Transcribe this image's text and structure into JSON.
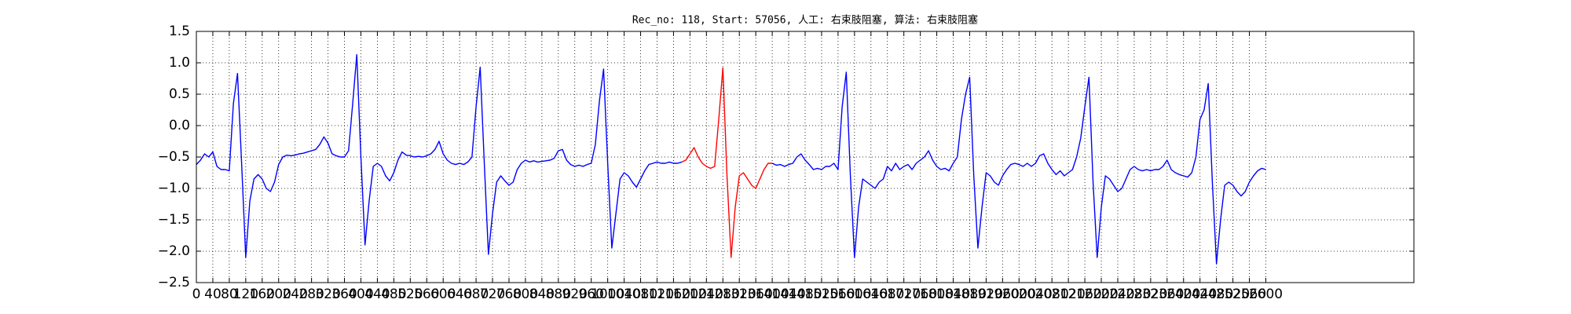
{
  "chart_data": {
    "type": "line",
    "title": "Rec_no: 118, Start: 57056, 人工: 右束肢阻塞, 算法: 右束肢阻塞",
    "xlim": [
      0,
      2960
    ],
    "ylim": [
      -2.5,
      1.5
    ],
    "xticks": [
      0,
      40,
      80,
      120,
      160,
      200,
      240,
      280,
      320,
      360,
      400,
      440,
      480,
      520,
      560,
      600,
      640,
      680,
      720,
      760,
      800,
      840,
      880,
      920,
      960,
      1000,
      1040,
      1080,
      1120,
      1160,
      1200,
      1240,
      1280,
      1320,
      1360,
      1400,
      1440,
      1480,
      1520,
      1560,
      1600,
      1640,
      1680,
      1720,
      1760,
      1800,
      1840,
      1880,
      1920,
      1960,
      2000,
      2040,
      2080,
      2120,
      2160,
      2200,
      2240,
      2280,
      2320,
      2360,
      2400,
      2440,
      2480,
      2520,
      2560,
      2600
    ],
    "yticks": [
      {
        "value": -2.5,
        "label": "−2.5"
      },
      {
        "value": -2.0,
        "label": "−2.0"
      },
      {
        "value": -1.5,
        "label": "−1.5"
      },
      {
        "value": -1.0,
        "label": "−1.0"
      },
      {
        "value": -0.5,
        "label": "−0.5"
      },
      {
        "value": 0.0,
        "label": "0.0"
      },
      0.5,
      {
        "value": 1.0,
        "label": "1.0"
      },
      1.5
    ],
    "grid": true,
    "series": [
      {
        "color": "#0000ff",
        "x": [
          0,
          10,
          20,
          30,
          40,
          50,
          60,
          70,
          80,
          90,
          100,
          110,
          120,
          130,
          140,
          150,
          160,
          170,
          180,
          190,
          200,
          210,
          220,
          230,
          240,
          250,
          260,
          270,
          280,
          290,
          300,
          310,
          320,
          330,
          340,
          350,
          360,
          370,
          380,
          390,
          400,
          410,
          420,
          430,
          440,
          450,
          460,
          470,
          480,
          490,
          500,
          510,
          520,
          530,
          540,
          550,
          560,
          570,
          580,
          590,
          600,
          610,
          620,
          630,
          640,
          650,
          660,
          670,
          680,
          690,
          700,
          710,
          720,
          730,
          740,
          750,
          760,
          770,
          780,
          790,
          800,
          810,
          820,
          830,
          840,
          850,
          860,
          870,
          880,
          890,
          900,
          910,
          920,
          930,
          940,
          950,
          960,
          970,
          980,
          990,
          1000,
          1010,
          1020,
          1030,
          1040,
          1050,
          1060,
          1070,
          1080,
          1090,
          1100,
          1110,
          1120,
          1130,
          1140,
          1150,
          1160,
          1170,
          1180
        ],
        "values": [
          -0.62,
          -0.55,
          -0.45,
          -0.5,
          -0.42,
          -0.65,
          -0.7,
          -0.7,
          -0.72,
          0.35,
          0.83,
          -0.6,
          -2.1,
          -1.2,
          -0.85,
          -0.78,
          -0.85,
          -1.0,
          -1.05,
          -0.9,
          -0.62,
          -0.5,
          -0.47,
          -0.48,
          -0.47,
          -0.45,
          -0.44,
          -0.42,
          -0.4,
          -0.38,
          -0.3,
          -0.18,
          -0.28,
          -0.45,
          -0.48,
          -0.5,
          -0.5,
          -0.4,
          0.35,
          1.13,
          -0.5,
          -1.9,
          -1.2,
          -0.65,
          -0.6,
          -0.65,
          -0.8,
          -0.88,
          -0.75,
          -0.55,
          -0.42,
          -0.47,
          -0.48,
          -0.5,
          -0.49,
          -0.5,
          -0.48,
          -0.45,
          -0.38,
          -0.25,
          -0.45,
          -0.55,
          -0.6,
          -0.62,
          -0.6,
          -0.62,
          -0.58,
          -0.5,
          0.3,
          0.93,
          -0.6,
          -2.05,
          -1.4,
          -0.9,
          -0.8,
          -0.88,
          -0.95,
          -0.9,
          -0.7,
          -0.6,
          -0.55,
          -0.58,
          -0.56,
          -0.58,
          -0.57,
          -0.56,
          -0.55,
          -0.52,
          -0.4,
          -0.38,
          -0.55,
          -0.62,
          -0.65,
          -0.63,
          -0.65,
          -0.62,
          -0.6,
          -0.3,
          0.4,
          0.9,
          -0.6,
          -1.95,
          -1.4,
          -0.85,
          -0.75,
          -0.8,
          -0.9,
          -0.98,
          -0.85,
          -0.72,
          -0.62,
          -0.6,
          -0.58,
          -0.6,
          -0.6,
          -0.58,
          -0.6,
          -0.6,
          -0.58
        ]
      },
      {
        "color": "#ff0000",
        "x": [
          1180,
          1190,
          1200,
          1210,
          1220,
          1230,
          1240,
          1250,
          1260,
          1270,
          1280,
          1290,
          1300,
          1310,
          1320,
          1330,
          1340,
          1350,
          1360,
          1370,
          1380,
          1390,
          1400
        ],
        "values": [
          -0.58,
          -0.55,
          -0.45,
          -0.35,
          -0.5,
          -0.6,
          -0.65,
          -0.68,
          -0.65,
          0.1,
          0.92,
          -0.8,
          -2.1,
          -1.3,
          -0.8,
          -0.75,
          -0.85,
          -0.95,
          -1.0,
          -0.85,
          -0.7,
          -0.6,
          -0.6
        ]
      },
      {
        "color": "#0000ff",
        "x": [
          1400,
          1410,
          1420,
          1430,
          1440,
          1450,
          1460,
          1470,
          1480,
          1490,
          1500,
          1510,
          1520,
          1530,
          1540,
          1550,
          1560,
          1570,
          1580,
          1590,
          1600,
          1610,
          1620,
          1630,
          1640,
          1650,
          1660,
          1670,
          1680,
          1690,
          1700,
          1710,
          1720,
          1730,
          1740,
          1750,
          1760,
          1770,
          1780,
          1790,
          1800,
          1810,
          1820,
          1830,
          1840,
          1850,
          1860,
          1870,
          1880,
          1890,
          1900,
          1910,
          1920,
          1930,
          1940,
          1950,
          1960,
          1970,
          1980,
          1990,
          2000,
          2010,
          2020,
          2030,
          2040,
          2050,
          2060,
          2070,
          2080,
          2090,
          2100,
          2110,
          2120,
          2130,
          2140,
          2150,
          2160,
          2170,
          2180,
          2190,
          2200,
          2210,
          2220,
          2230,
          2240,
          2250,
          2260,
          2270,
          2280,
          2290,
          2300,
          2310,
          2320,
          2330,
          2340,
          2350,
          2360,
          2370,
          2380,
          2390,
          2400,
          2410,
          2420,
          2430,
          2440,
          2450,
          2460,
          2470,
          2480,
          2490,
          2500,
          2510,
          2520,
          2530,
          2540,
          2550,
          2560,
          2570,
          2580,
          2590,
          2600
        ],
        "values": [
          -0.6,
          -0.63,
          -0.62,
          -0.65,
          -0.62,
          -0.6,
          -0.5,
          -0.45,
          -0.55,
          -0.62,
          -0.7,
          -0.68,
          -0.7,
          -0.65,
          -0.65,
          -0.6,
          -0.7,
          0.3,
          0.85,
          -0.8,
          -2.1,
          -1.3,
          -0.85,
          -0.9,
          -0.95,
          -1.0,
          -0.9,
          -0.85,
          -0.65,
          -0.72,
          -0.6,
          -0.7,
          -0.65,
          -0.62,
          -0.7,
          -0.6,
          -0.55,
          -0.5,
          -0.4,
          -0.55,
          -0.65,
          -0.7,
          -0.68,
          -0.72,
          -0.6,
          -0.5,
          0.1,
          0.5,
          0.77,
          -0.8,
          -1.95,
          -1.3,
          -0.75,
          -0.8,
          -0.9,
          -0.95,
          -0.8,
          -0.7,
          -0.62,
          -0.6,
          -0.62,
          -0.65,
          -0.6,
          -0.65,
          -0.6,
          -0.48,
          -0.45,
          -0.6,
          -0.7,
          -0.78,
          -0.72,
          -0.8,
          -0.75,
          -0.7,
          -0.5,
          -0.2,
          0.3,
          0.77,
          -0.9,
          -2.1,
          -1.3,
          -0.8,
          -0.85,
          -0.95,
          -1.05,
          -1.0,
          -0.85,
          -0.7,
          -0.65,
          -0.7,
          -0.72,
          -0.7,
          -0.72,
          -0.7,
          -0.7,
          -0.65,
          -0.55,
          -0.7,
          -0.75,
          -0.78,
          -0.8,
          -0.82,
          -0.75,
          -0.5,
          0.1,
          0.25,
          0.67,
          -0.9,
          -2.2,
          -1.5,
          -0.95,
          -0.9,
          -0.95,
          -1.05,
          -1.12,
          -1.05,
          -0.9,
          -0.8,
          -0.72,
          -0.68,
          -0.7
        ]
      }
    ]
  }
}
